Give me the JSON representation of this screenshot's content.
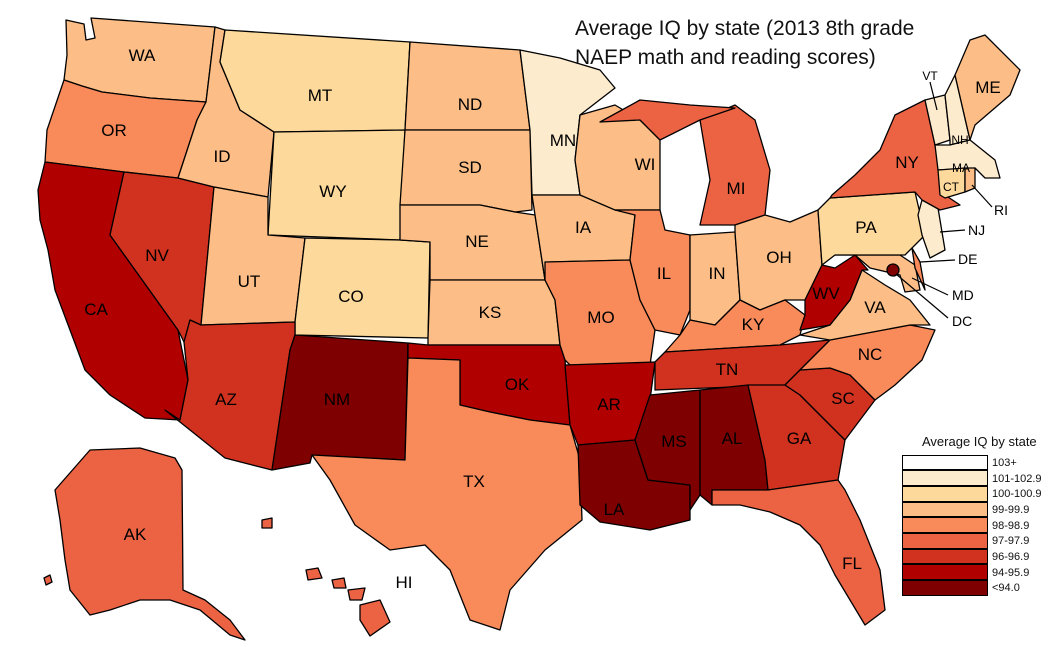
{
  "title_line1": "Average IQ by state (2013 8th grade",
  "title_line2": "NAEP math and reading scores)",
  "legend": {
    "title": "Average IQ by state",
    "items": [
      {
        "label": "103+",
        "color": "#ffffff"
      },
      {
        "label": "101-102.9",
        "color": "#fdebce"
      },
      {
        "label": "100-100.9",
        "color": "#fdd99b"
      },
      {
        "label": "99-99.9",
        "color": "#fcbe86"
      },
      {
        "label": "98-98.9",
        "color": "#f98b5b"
      },
      {
        "label": "97-97.9",
        "color": "#ec6344"
      },
      {
        "label": "96-96.9",
        "color": "#d1321f"
      },
      {
        "label": "94-95.9",
        "color": "#b10000"
      },
      {
        "label": "<94.0",
        "color": "#7f0000"
      }
    ]
  },
  "states": {
    "WA": {
      "name": "WA",
      "bin": 3
    },
    "OR": {
      "name": "OR",
      "bin": 4
    },
    "CA": {
      "name": "CA",
      "bin": 7
    },
    "NV": {
      "name": "NV",
      "bin": 6
    },
    "ID": {
      "name": "ID",
      "bin": 3
    },
    "MT": {
      "name": "MT",
      "bin": 2
    },
    "WY": {
      "name": "WY",
      "bin": 2
    },
    "UT": {
      "name": "UT",
      "bin": 3
    },
    "CO": {
      "name": "CO",
      "bin": 2
    },
    "AZ": {
      "name": "AZ",
      "bin": 6
    },
    "NM": {
      "name": "NM",
      "bin": 8
    },
    "ND": {
      "name": "ND",
      "bin": 3
    },
    "SD": {
      "name": "SD",
      "bin": 3
    },
    "NE": {
      "name": "NE",
      "bin": 3
    },
    "KS": {
      "name": "KS",
      "bin": 3
    },
    "OK": {
      "name": "OK",
      "bin": 7
    },
    "TX": {
      "name": "TX",
      "bin": 4
    },
    "MN": {
      "name": "MN",
      "bin": 1
    },
    "IA": {
      "name": "IA",
      "bin": 3
    },
    "MO": {
      "name": "MO",
      "bin": 4
    },
    "AR": {
      "name": "AR",
      "bin": 7
    },
    "LA": {
      "name": "LA",
      "bin": 8
    },
    "WI": {
      "name": "WI",
      "bin": 3
    },
    "IL": {
      "name": "IL",
      "bin": 4
    },
    "MI": {
      "name": "MI",
      "bin": 5
    },
    "IN": {
      "name": "IN",
      "bin": 3
    },
    "OH": {
      "name": "OH",
      "bin": 3
    },
    "KY": {
      "name": "KY",
      "bin": 4
    },
    "TN": {
      "name": "TN",
      "bin": 6
    },
    "MS": {
      "name": "MS",
      "bin": 8
    },
    "AL": {
      "name": "AL",
      "bin": 8
    },
    "GA": {
      "name": "GA",
      "bin": 6
    },
    "FL": {
      "name": "FL",
      "bin": 5
    },
    "SC": {
      "name": "SC",
      "bin": 6
    },
    "NC": {
      "name": "NC",
      "bin": 4
    },
    "VA": {
      "name": "VA",
      "bin": 3
    },
    "WV": {
      "name": "WV",
      "bin": 7
    },
    "PA": {
      "name": "PA",
      "bin": 2
    },
    "NY": {
      "name": "NY",
      "bin": 5
    },
    "ME": {
      "name": "ME",
      "bin": 3
    },
    "VT": {
      "name": "VT",
      "bin": 1
    },
    "NH": {
      "name": "NH",
      "bin": 1
    },
    "MA": {
      "name": "MA",
      "bin": 1
    },
    "CT": {
      "name": "CT",
      "bin": 2
    },
    "RI": {
      "name": "RI",
      "bin": 3
    },
    "NJ": {
      "name": "NJ",
      "bin": 1
    },
    "DE": {
      "name": "DE",
      "bin": 4
    },
    "MD": {
      "name": "MD",
      "bin": 3
    },
    "DC": {
      "name": "DC",
      "bin": 8
    },
    "AK": {
      "name": "AK",
      "bin": 5
    },
    "HI": {
      "name": "HI",
      "bin": 5
    }
  }
}
